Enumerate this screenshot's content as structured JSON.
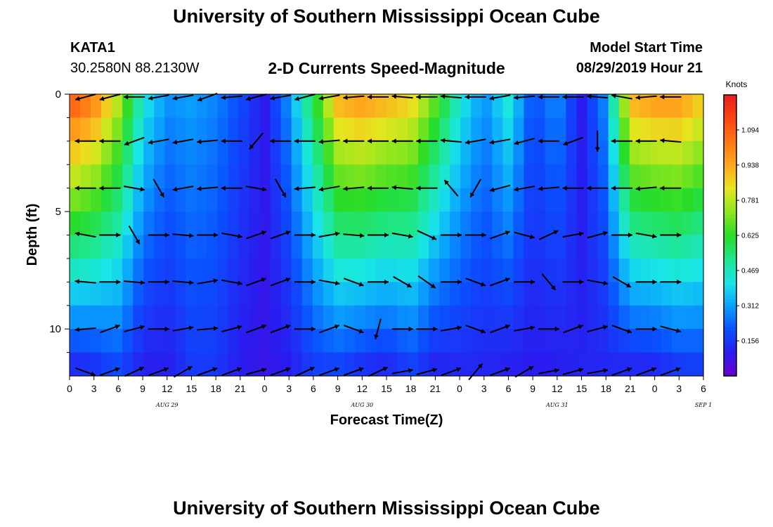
{
  "header": {
    "title": "University of Southern Mississippi Ocean Cube",
    "station_id": "KATA1",
    "coordinates": "30.2580N 88.2130W",
    "subtitle": "2-D Currents Speed-Magnitude",
    "model_start_label": "Model Start Time",
    "model_start_value": "08/29/2019 Hour 21"
  },
  "footer": {
    "title": "University of Southern Mississippi Ocean Cube"
  },
  "chart_data": {
    "type": "heatmap",
    "title": "2-D Currents Speed-Magnitude",
    "xlabel": "Forecast Time(Z)",
    "ylabel": "Depth (ft)",
    "x_tick_labels": [
      "0",
      "3",
      "6",
      "9",
      "12",
      "15",
      "18",
      "21",
      "0",
      "3",
      "6",
      "9",
      "12",
      "15",
      "18",
      "21",
      "0",
      "3",
      "6",
      "9",
      "12",
      "15",
      "18",
      "21",
      "0",
      "3",
      "6"
    ],
    "date_labels": [
      {
        "label": "AUG 29",
        "hours_from_start": 12
      },
      {
        "label": "AUG 30",
        "hours_from_start": 36
      },
      {
        "label": "AUG 31",
        "hours_from_start": 60
      },
      {
        "label": "SEP 1",
        "hours_from_start": 78
      }
    ],
    "y_ticks": [
      "0",
      "5",
      "10"
    ],
    "ylim": [
      0,
      12
    ],
    "colorbar": {
      "unit": "Knots",
      "tick_labels": [
        "0.156",
        "0.312",
        "0.469",
        "0.625",
        "0.781",
        "0.938",
        "1.094"
      ],
      "range": [
        0,
        1.25
      ],
      "colors": [
        "#6b00cc",
        "#2a1cf0",
        "#0a50ff",
        "#0aa0ff",
        "#19e6e6",
        "#1ee68c",
        "#28dc28",
        "#8ce61e",
        "#e6e61e",
        "#ffaa1e",
        "#ff7814",
        "#ff4614",
        "#e61e1e"
      ]
    },
    "time_steps_hours": 3,
    "depth_levels_ft": [
      0,
      1,
      2,
      3,
      4,
      5,
      6,
      7,
      8,
      9,
      10,
      11,
      12
    ],
    "speed_profile_surface": [
      1.15,
      1.05,
      0.8,
      0.45,
      0.3,
      0.32,
      0.28,
      0.2,
      0.1,
      0.3,
      0.6,
      0.95,
      1.0,
      0.95,
      0.9,
      0.7,
      0.45,
      0.3,
      0.45,
      0.2,
      0.3,
      0.1,
      0.3,
      0.95,
      1.0,
      1.0,
      0.9
    ],
    "speed_profile_bottom": [
      0.1,
      0.12,
      0.18,
      0.1,
      0.1,
      0.16,
      0.16,
      0.1,
      0.08,
      0.1,
      0.16,
      0.16,
      0.12,
      0.1,
      0.16,
      0.1,
      0.12,
      0.12,
      0.1,
      0.1,
      0.1,
      0.12,
      0.12,
      0.1,
      0.1,
      0.14,
      0.15
    ],
    "arrow_depths_ft": [
      0,
      2,
      4,
      6,
      8,
      10,
      12
    ],
    "arrow_directions_deg": [
      [
        200,
        195,
        195,
        180,
        190,
        190,
        200,
        185,
        195,
        190,
        195,
        190,
        185,
        180,
        175,
        180,
        175,
        180,
        190,
        185,
        180,
        180,
        175,
        170,
        185,
        180,
        170
      ],
      [
        185,
        180,
        180,
        200,
        190,
        190,
        185,
        180,
        230,
        180,
        180,
        185,
        180,
        180,
        180,
        180,
        175,
        190,
        190,
        195,
        180,
        200,
        270,
        180,
        180,
        175,
        190
      ],
      [
        180,
        180,
        180,
        350,
        300,
        190,
        185,
        180,
        350,
        300,
        185,
        190,
        185,
        180,
        175,
        180,
        130,
        240,
        195,
        190,
        185,
        180,
        180,
        180,
        185,
        180,
        190
      ],
      [
        170,
        170,
        0,
        300,
        0,
        355,
        0,
        350,
        20,
        20,
        0,
        10,
        355,
        0,
        350,
        335,
        0,
        0,
        20,
        345,
        25,
        10,
        15,
        0,
        350,
        0,
        0
      ],
      [
        170,
        175,
        0,
        355,
        0,
        355,
        10,
        350,
        20,
        20,
        0,
        350,
        340,
        0,
        330,
        325,
        0,
        340,
        20,
        0,
        310,
        0,
        350,
        330,
        0,
        0,
        0
      ],
      [
        190,
        185,
        20,
        15,
        0,
        10,
        5,
        15,
        20,
        20,
        0,
        20,
        340,
        255,
        0,
        0,
        10,
        340,
        20,
        10,
        0,
        20,
        15,
        340,
        0,
        345,
        0
      ],
      [
        330,
        340,
        20,
        25,
        20,
        30,
        20,
        20,
        15,
        20,
        25,
        20,
        20,
        25,
        10,
        15,
        20,
        50,
        20,
        30,
        10,
        15,
        10,
        20,
        20,
        20,
        5
      ]
    ]
  }
}
